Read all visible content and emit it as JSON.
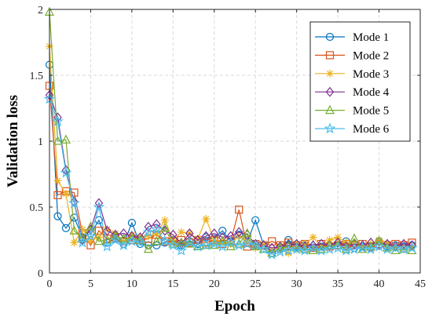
{
  "chart_data": {
    "type": "line",
    "title": "",
    "xlabel": "Epoch",
    "ylabel": "Validation loss",
    "xlim": [
      0,
      45
    ],
    "ylim": [
      0,
      2
    ],
    "xticks": [
      0,
      5,
      10,
      15,
      20,
      25,
      30,
      35,
      40,
      45
    ],
    "yticks": [
      0,
      0.5,
      1,
      1.5,
      2
    ],
    "ytick_labels": [
      "0",
      "0.5",
      "1",
      "1.5",
      "2"
    ],
    "grid": true,
    "legend_position": "top-right",
    "x": [
      0,
      1,
      2,
      3,
      4,
      5,
      6,
      7,
      8,
      9,
      10,
      11,
      12,
      13,
      14,
      15,
      16,
      17,
      18,
      19,
      20,
      21,
      22,
      23,
      24,
      25,
      26,
      27,
      28,
      29,
      30,
      31,
      32,
      33,
      34,
      35,
      36,
      37,
      38,
      39,
      40,
      41,
      42,
      43,
      44
    ],
    "series": [
      {
        "name": "Mode 1",
        "color": "#0072BD",
        "marker": "circle",
        "values": [
          1.58,
          0.43,
          0.34,
          0.42,
          0.27,
          0.3,
          0.4,
          0.23,
          0.26,
          0.22,
          0.38,
          0.22,
          0.21,
          0.21,
          0.23,
          0.25,
          0.21,
          0.24,
          0.22,
          0.27,
          0.26,
          0.32,
          0.24,
          0.29,
          0.23,
          0.4,
          0.21,
          0.15,
          0.18,
          0.25,
          0.2,
          0.21,
          0.19,
          0.2,
          0.21,
          0.21,
          0.24,
          0.19,
          0.2,
          0.19,
          0.24,
          0.2,
          0.21,
          0.2,
          0.21
        ]
      },
      {
        "name": "Mode 2",
        "color": "#D95319",
        "marker": "square",
        "values": [
          1.42,
          0.59,
          0.62,
          0.61,
          0.3,
          0.21,
          0.32,
          0.26,
          0.27,
          0.24,
          0.25,
          0.25,
          0.26,
          0.29,
          0.24,
          0.24,
          0.25,
          0.23,
          0.25,
          0.23,
          0.25,
          0.22,
          0.24,
          0.48,
          0.2,
          0.22,
          0.21,
          0.24,
          0.21,
          0.23,
          0.21,
          0.22,
          0.19,
          0.22,
          0.2,
          0.21,
          0.22,
          0.21,
          0.22,
          0.2,
          0.22,
          0.21,
          0.22,
          0.21,
          0.23
        ]
      },
      {
        "name": "Mode 3",
        "color": "#EDB120",
        "marker": "asterisk",
        "values": [
          1.72,
          0.7,
          0.6,
          0.23,
          0.33,
          0.25,
          0.27,
          0.33,
          0.3,
          0.24,
          0.29,
          0.27,
          0.28,
          0.3,
          0.4,
          0.25,
          0.31,
          0.3,
          0.26,
          0.41,
          0.25,
          0.24,
          0.22,
          0.28,
          0.24,
          0.19,
          0.22,
          0.17,
          0.18,
          0.15,
          0.21,
          0.22,
          0.27,
          0.2,
          0.25,
          0.27,
          0.23,
          0.22,
          0.2,
          0.22,
          0.25,
          0.22,
          0.2,
          0.19,
          0.2
        ]
      },
      {
        "name": "Mode 4",
        "color": "#7E2F8E",
        "marker": "diamond",
        "values": [
          1.35,
          1.18,
          0.78,
          0.54,
          0.25,
          0.33,
          0.53,
          0.32,
          0.29,
          0.3,
          0.28,
          0.27,
          0.35,
          0.37,
          0.32,
          0.29,
          0.22,
          0.3,
          0.25,
          0.28,
          0.3,
          0.27,
          0.28,
          0.31,
          0.29,
          0.22,
          0.21,
          0.19,
          0.2,
          0.21,
          0.22,
          0.2,
          0.21,
          0.22,
          0.21,
          0.23,
          0.2,
          0.22,
          0.21,
          0.23,
          0.21,
          0.22,
          0.2,
          0.22,
          0.21
        ]
      },
      {
        "name": "Mode 5",
        "color": "#77AC30",
        "marker": "triangle",
        "values": [
          1.98,
          1.0,
          1.01,
          0.32,
          0.26,
          0.35,
          0.24,
          0.25,
          0.28,
          0.26,
          0.26,
          0.25,
          0.18,
          0.24,
          0.34,
          0.22,
          0.23,
          0.22,
          0.2,
          0.21,
          0.21,
          0.24,
          0.2,
          0.22,
          0.3,
          0.2,
          0.18,
          0.15,
          0.19,
          0.2,
          0.19,
          0.18,
          0.17,
          0.18,
          0.21,
          0.21,
          0.18,
          0.26,
          0.18,
          0.2,
          0.24,
          0.19,
          0.17,
          0.18,
          0.17
        ]
      },
      {
        "name": "Mode 6",
        "color": "#4DBEEE",
        "marker": "star",
        "values": [
          1.32,
          1.15,
          0.76,
          0.53,
          0.23,
          0.28,
          0.5,
          0.2,
          0.25,
          0.21,
          0.24,
          0.23,
          0.31,
          0.33,
          0.24,
          0.21,
          0.17,
          0.23,
          0.2,
          0.21,
          0.22,
          0.2,
          0.23,
          0.21,
          0.22,
          0.21,
          0.18,
          0.14,
          0.16,
          0.17,
          0.18,
          0.17,
          0.19,
          0.17,
          0.18,
          0.19,
          0.17,
          0.18,
          0.19,
          0.18,
          0.2,
          0.18,
          0.19,
          0.18,
          0.19
        ]
      }
    ]
  }
}
